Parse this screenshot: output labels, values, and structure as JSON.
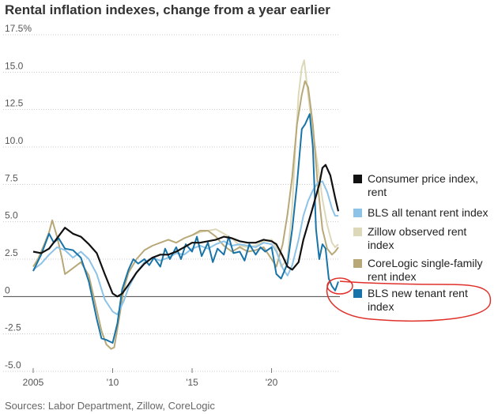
{
  "chart_data": {
    "type": "line",
    "title": "Rental inflation indexes, change from a year earlier",
    "source": "Sources: Labor Department, Zillow, CoreLogic",
    "xlabel": "",
    "ylabel": "",
    "xlim": [
      2005,
      2024.3
    ],
    "ylim": [
      -5,
      17.5
    ],
    "y_ticks": [
      {
        "value": 17.5,
        "label": "17.5%"
      },
      {
        "value": 15,
        "label": "15.0"
      },
      {
        "value": 12.5,
        "label": "12.5"
      },
      {
        "value": 10,
        "label": "10.0"
      },
      {
        "value": 7.5,
        "label": "7.5"
      },
      {
        "value": 5,
        "label": "5.0"
      },
      {
        "value": 2.5,
        "label": "2.5"
      },
      {
        "value": 0,
        "label": "0"
      },
      {
        "value": -2.5,
        "label": "-2.5"
      },
      {
        "value": -5,
        "label": "-5.0"
      }
    ],
    "x_ticks": [
      {
        "value": 2005,
        "label": "2005"
      },
      {
        "value": 2010,
        "label": "'10"
      },
      {
        "value": 2015,
        "label": "'15"
      },
      {
        "value": 2020,
        "label": "'20"
      }
    ],
    "grid": "horizontal dotted",
    "legend_position": "right",
    "series": [
      {
        "name": "Consumer price index, rent",
        "color": "#111111",
        "points": [
          [
            2005,
            3.0
          ],
          [
            2005.5,
            2.9
          ],
          [
            2006,
            3.2
          ],
          [
            2006.5,
            3.9
          ],
          [
            2007,
            4.6
          ],
          [
            2007.5,
            4.2
          ],
          [
            2008,
            4.0
          ],
          [
            2008.5,
            3.5
          ],
          [
            2009,
            2.9
          ],
          [
            2009.5,
            1.5
          ],
          [
            2010,
            0.2
          ],
          [
            2010.3,
            0
          ],
          [
            2010.6,
            0.2
          ],
          [
            2011,
            0.8
          ],
          [
            2011.5,
            1.6
          ],
          [
            2012,
            2.2
          ],
          [
            2012.5,
            2.6
          ],
          [
            2013,
            2.8
          ],
          [
            2013.5,
            2.8
          ],
          [
            2014,
            3.0
          ],
          [
            2014.5,
            3.3
          ],
          [
            2015,
            3.6
          ],
          [
            2015.5,
            3.6
          ],
          [
            2016,
            3.7
          ],
          [
            2016.5,
            3.8
          ],
          [
            2017,
            4.0
          ],
          [
            2017.5,
            3.9
          ],
          [
            2018,
            3.7
          ],
          [
            2018.5,
            3.6
          ],
          [
            2019,
            3.6
          ],
          [
            2019.5,
            3.8
          ],
          [
            2020,
            3.7
          ],
          [
            2020.3,
            3.5
          ],
          [
            2020.7,
            2.7
          ],
          [
            2021,
            2.0
          ],
          [
            2021.3,
            1.8
          ],
          [
            2021.7,
            2.3
          ],
          [
            2022,
            3.8
          ],
          [
            2022.5,
            5.6
          ],
          [
            2023,
            7.5
          ],
          [
            2023.2,
            8.6
          ],
          [
            2023.4,
            8.8
          ],
          [
            2023.7,
            8.1
          ],
          [
            2024,
            6.6
          ],
          [
            2024.2,
            5.7
          ]
        ]
      },
      {
        "name": "BLS all tenant rent index",
        "color": "#8ec3e8",
        "points": [
          [
            2005,
            1.8
          ],
          [
            2005.5,
            2.2
          ],
          [
            2006,
            2.8
          ],
          [
            2006.5,
            3.3
          ],
          [
            2007,
            3.1
          ],
          [
            2007.5,
            2.6
          ],
          [
            2008,
            3.0
          ],
          [
            2008.5,
            2.5
          ],
          [
            2009,
            1.5
          ],
          [
            2009.5,
            -0.2
          ],
          [
            2010,
            -1.0
          ],
          [
            2010.3,
            -1.2
          ],
          [
            2010.7,
            -0.3
          ],
          [
            2011,
            0.6
          ],
          [
            2011.5,
            1.6
          ],
          [
            2012,
            2.3
          ],
          [
            2012.5,
            2.6
          ],
          [
            2013,
            2.4
          ],
          [
            2013.5,
            2.6
          ],
          [
            2014,
            2.9
          ],
          [
            2014.5,
            2.8
          ],
          [
            2015,
            3.2
          ],
          [
            2015.5,
            3.4
          ],
          [
            2016,
            3.2
          ],
          [
            2016.5,
            3.5
          ],
          [
            2017,
            3.7
          ],
          [
            2017.5,
            3.4
          ],
          [
            2018,
            3.5
          ],
          [
            2018.5,
            3.4
          ],
          [
            2019,
            3.3
          ],
          [
            2019.5,
            3.6
          ],
          [
            2020,
            3.5
          ],
          [
            2020.3,
            3.0
          ],
          [
            2020.7,
            1.9
          ],
          [
            2021,
            1.4
          ],
          [
            2021.3,
            2.1
          ],
          [
            2021.7,
            3.8
          ],
          [
            2022,
            5.4
          ],
          [
            2022.3,
            6.4
          ],
          [
            2022.6,
            7.1
          ],
          [
            2022.9,
            7.6
          ],
          [
            2023.2,
            7.7
          ],
          [
            2023.5,
            7.0
          ],
          [
            2023.8,
            5.9
          ],
          [
            2024,
            5.4
          ],
          [
            2024.2,
            5.4
          ]
        ]
      },
      {
        "name": "Zillow observed rent index",
        "color": "#ddd8b8",
        "points": [
          [
            2015,
            4.1
          ],
          [
            2015.5,
            4.3
          ],
          [
            2016,
            4.4
          ],
          [
            2016.5,
            4.5
          ],
          [
            2017,
            4.2
          ],
          [
            2017.5,
            3.9
          ],
          [
            2018,
            3.4
          ],
          [
            2018.5,
            3.3
          ],
          [
            2019,
            3.4
          ],
          [
            2019.5,
            3.7
          ],
          [
            2020,
            3.8
          ],
          [
            2020.3,
            3.2
          ],
          [
            2020.6,
            2.0
          ],
          [
            2021,
            2.5
          ],
          [
            2021.3,
            6.0
          ],
          [
            2021.5,
            10.0
          ],
          [
            2021.7,
            13.5
          ],
          [
            2021.9,
            15.3
          ],
          [
            2022.05,
            15.8
          ],
          [
            2022.3,
            13.5
          ],
          [
            2022.6,
            11.0
          ],
          [
            2022.9,
            8.8
          ],
          [
            2023.2,
            6.5
          ],
          [
            2023.5,
            4.8
          ],
          [
            2023.8,
            3.6
          ],
          [
            2024,
            3.3
          ],
          [
            2024.2,
            3.5
          ]
        ]
      },
      {
        "name": "CoreLogic single-family rent index",
        "color": "#b8a878",
        "points": [
          [
            2005,
            2.0
          ],
          [
            2005.3,
            2.5
          ],
          [
            2005.7,
            3.5
          ],
          [
            2006,
            4.3
          ],
          [
            2006.2,
            5.1
          ],
          [
            2006.5,
            4.0
          ],
          [
            2006.8,
            2.6
          ],
          [
            2007,
            1.5
          ],
          [
            2007.5,
            1.9
          ],
          [
            2008,
            2.3
          ],
          [
            2008.5,
            1.4
          ],
          [
            2009,
            -0.9
          ],
          [
            2009.3,
            -2.3
          ],
          [
            2009.6,
            -3.2
          ],
          [
            2009.9,
            -3.5
          ],
          [
            2010.1,
            -3.4
          ],
          [
            2010.4,
            -1.5
          ],
          [
            2010.7,
            0.5
          ],
          [
            2011,
            1.6
          ],
          [
            2011.5,
            2.5
          ],
          [
            2012,
            3.1
          ],
          [
            2012.5,
            3.4
          ],
          [
            2013,
            3.6
          ],
          [
            2013.5,
            3.8
          ],
          [
            2014,
            3.6
          ],
          [
            2014.5,
            3.9
          ],
          [
            2015,
            4.1
          ],
          [
            2015.5,
            4.4
          ],
          [
            2016,
            4.4
          ],
          [
            2016.5,
            4.0
          ],
          [
            2017,
            3.4
          ],
          [
            2017.5,
            3.0
          ],
          [
            2018,
            3.3
          ],
          [
            2018.5,
            3.0
          ],
          [
            2019,
            3.1
          ],
          [
            2019.5,
            3.3
          ],
          [
            2020,
            2.5
          ],
          [
            2020.3,
            2.0
          ],
          [
            2020.7,
            3.5
          ],
          [
            2021,
            5.5
          ],
          [
            2021.3,
            8.0
          ],
          [
            2021.6,
            11.5
          ],
          [
            2021.9,
            13.5
          ],
          [
            2022.1,
            14.4
          ],
          [
            2022.3,
            14.0
          ],
          [
            2022.6,
            11.5
          ],
          [
            2022.9,
            7.5
          ],
          [
            2023.2,
            4.5
          ],
          [
            2023.5,
            3.2
          ],
          [
            2023.8,
            2.8
          ],
          [
            2024,
            3.0
          ],
          [
            2024.2,
            3.3
          ]
        ]
      },
      {
        "name": "BLS new tenant rent index",
        "color": "#1874a8",
        "points": [
          [
            2005,
            1.7
          ],
          [
            2005.5,
            2.8
          ],
          [
            2006,
            4.2
          ],
          [
            2006.3,
            3.6
          ],
          [
            2006.6,
            3.9
          ],
          [
            2007,
            3.2
          ],
          [
            2007.5,
            3.1
          ],
          [
            2008,
            2.6
          ],
          [
            2008.5,
            1.0
          ],
          [
            2009,
            -1.5
          ],
          [
            2009.3,
            -2.8
          ],
          [
            2009.6,
            -2.9
          ],
          [
            2009.8,
            -3.0
          ],
          [
            2010,
            -3.1
          ],
          [
            2010.3,
            -1.8
          ],
          [
            2010.6,
            0.5
          ],
          [
            2011,
            1.8
          ],
          [
            2011.3,
            2.5
          ],
          [
            2011.6,
            2.2
          ],
          [
            2012,
            2.5
          ],
          [
            2012.3,
            2.1
          ],
          [
            2012.6,
            2.6
          ],
          [
            2013,
            2.0
          ],
          [
            2013.3,
            3.2
          ],
          [
            2013.6,
            2.5
          ],
          [
            2014,
            3.3
          ],
          [
            2014.3,
            2.5
          ],
          [
            2014.6,
            3.5
          ],
          [
            2015,
            3.0
          ],
          [
            2015.3,
            4.0
          ],
          [
            2015.6,
            2.7
          ],
          [
            2016,
            3.6
          ],
          [
            2016.3,
            2.3
          ],
          [
            2016.6,
            3.2
          ],
          [
            2017,
            2.8
          ],
          [
            2017.3,
            4.0
          ],
          [
            2017.6,
            2.9
          ],
          [
            2018,
            3.0
          ],
          [
            2018.3,
            2.4
          ],
          [
            2018.6,
            3.5
          ],
          [
            2019,
            2.8
          ],
          [
            2019.3,
            3.3
          ],
          [
            2019.6,
            3.0
          ],
          [
            2020,
            3.3
          ],
          [
            2020.3,
            1.5
          ],
          [
            2020.6,
            1.2
          ],
          [
            2021,
            2.2
          ],
          [
            2021.3,
            4.5
          ],
          [
            2021.6,
            7.5
          ],
          [
            2021.9,
            11.2
          ],
          [
            2022.1,
            11.5
          ],
          [
            2022.4,
            12.2
          ],
          [
            2022.6,
            10.0
          ],
          [
            2022.8,
            4.5
          ],
          [
            2023,
            2.5
          ],
          [
            2023.2,
            3.5
          ],
          [
            2023.4,
            3.2
          ],
          [
            2023.6,
            1.2
          ],
          [
            2023.8,
            0.7
          ],
          [
            2024,
            0.4
          ],
          [
            2024.2,
            1.0
          ]
        ]
      }
    ],
    "annotation": "red hand-drawn circle around recent BLS new tenant rent index reading"
  }
}
